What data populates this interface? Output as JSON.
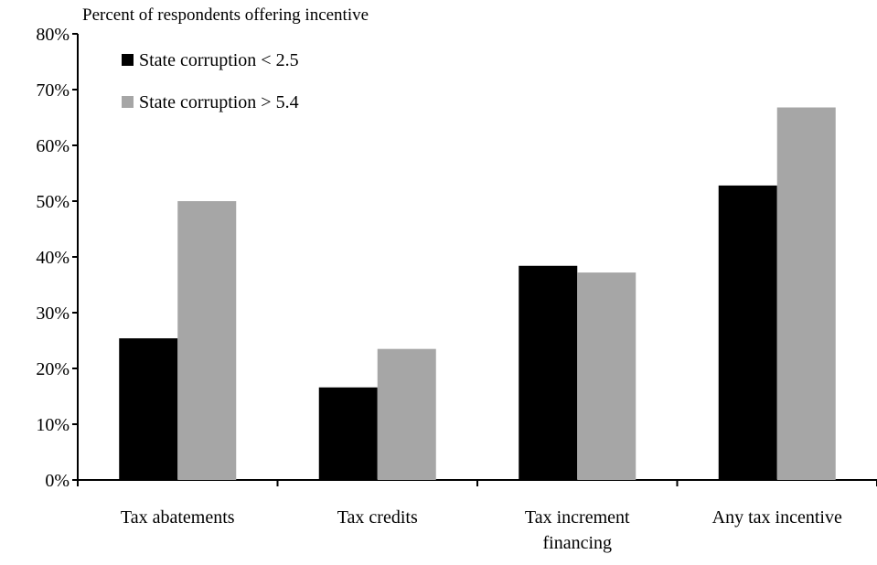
{
  "chart_data": {
    "type": "bar",
    "title": "",
    "xlabel": "",
    "ylabel": "Percent of respondents offering incentive",
    "ylim": [
      0,
      80
    ],
    "yticks": [
      "0%",
      "10%",
      "20%",
      "30%",
      "40%",
      "50%",
      "60%",
      "70%",
      "80%"
    ],
    "categories": [
      [
        "Tax abatements"
      ],
      [
        "Tax credits"
      ],
      [
        "Tax increment",
        "financing"
      ],
      [
        "Any tax incentive"
      ]
    ],
    "series": [
      {
        "name": "State corruption < 2.5",
        "color": "#000000",
        "values": [
          25.4,
          16.6,
          38.4,
          52.8
        ]
      },
      {
        "name": "State corruption > 5.4",
        "color": "#a6a6a6",
        "values": [
          50.0,
          23.5,
          37.2,
          66.8
        ]
      }
    ],
    "grid": false,
    "legend": "top-left"
  }
}
